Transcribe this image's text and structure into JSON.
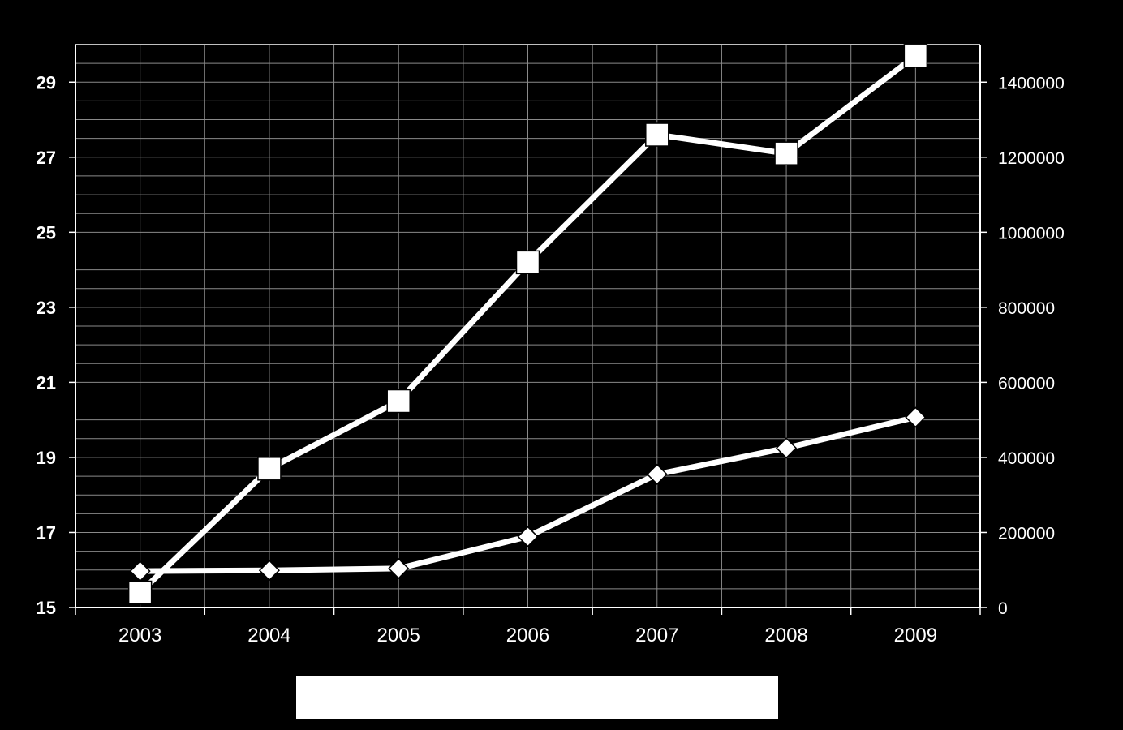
{
  "chart_data": {
    "type": "line",
    "categories": [
      "2003",
      "2004",
      "2005",
      "2006",
      "2007",
      "2008",
      "2009"
    ],
    "y_left": {
      "ylim": [
        15,
        30
      ],
      "ticks": [
        15,
        17,
        19,
        21,
        23,
        25,
        27,
        29
      ]
    },
    "y_right": {
      "ylim": [
        0,
        1500000
      ],
      "ticks": [
        0,
        200000,
        400000,
        600000,
        800000,
        1000000,
        1200000,
        1400000
      ]
    },
    "grid": true,
    "series": [
      {
        "marker": "square",
        "axis": "left",
        "values": [
          15.4,
          18.7,
          20.5,
          24.2,
          27.6,
          27.1,
          29.7
        ]
      },
      {
        "marker": "diamond",
        "axis": "right",
        "values": [
          97000,
          99000,
          104000,
          189000,
          355000,
          425000,
          507000
        ]
      }
    ],
    "legend_placement": "bottom",
    "colors": {
      "background": "#000000",
      "foreground": "#ffffff"
    }
  }
}
